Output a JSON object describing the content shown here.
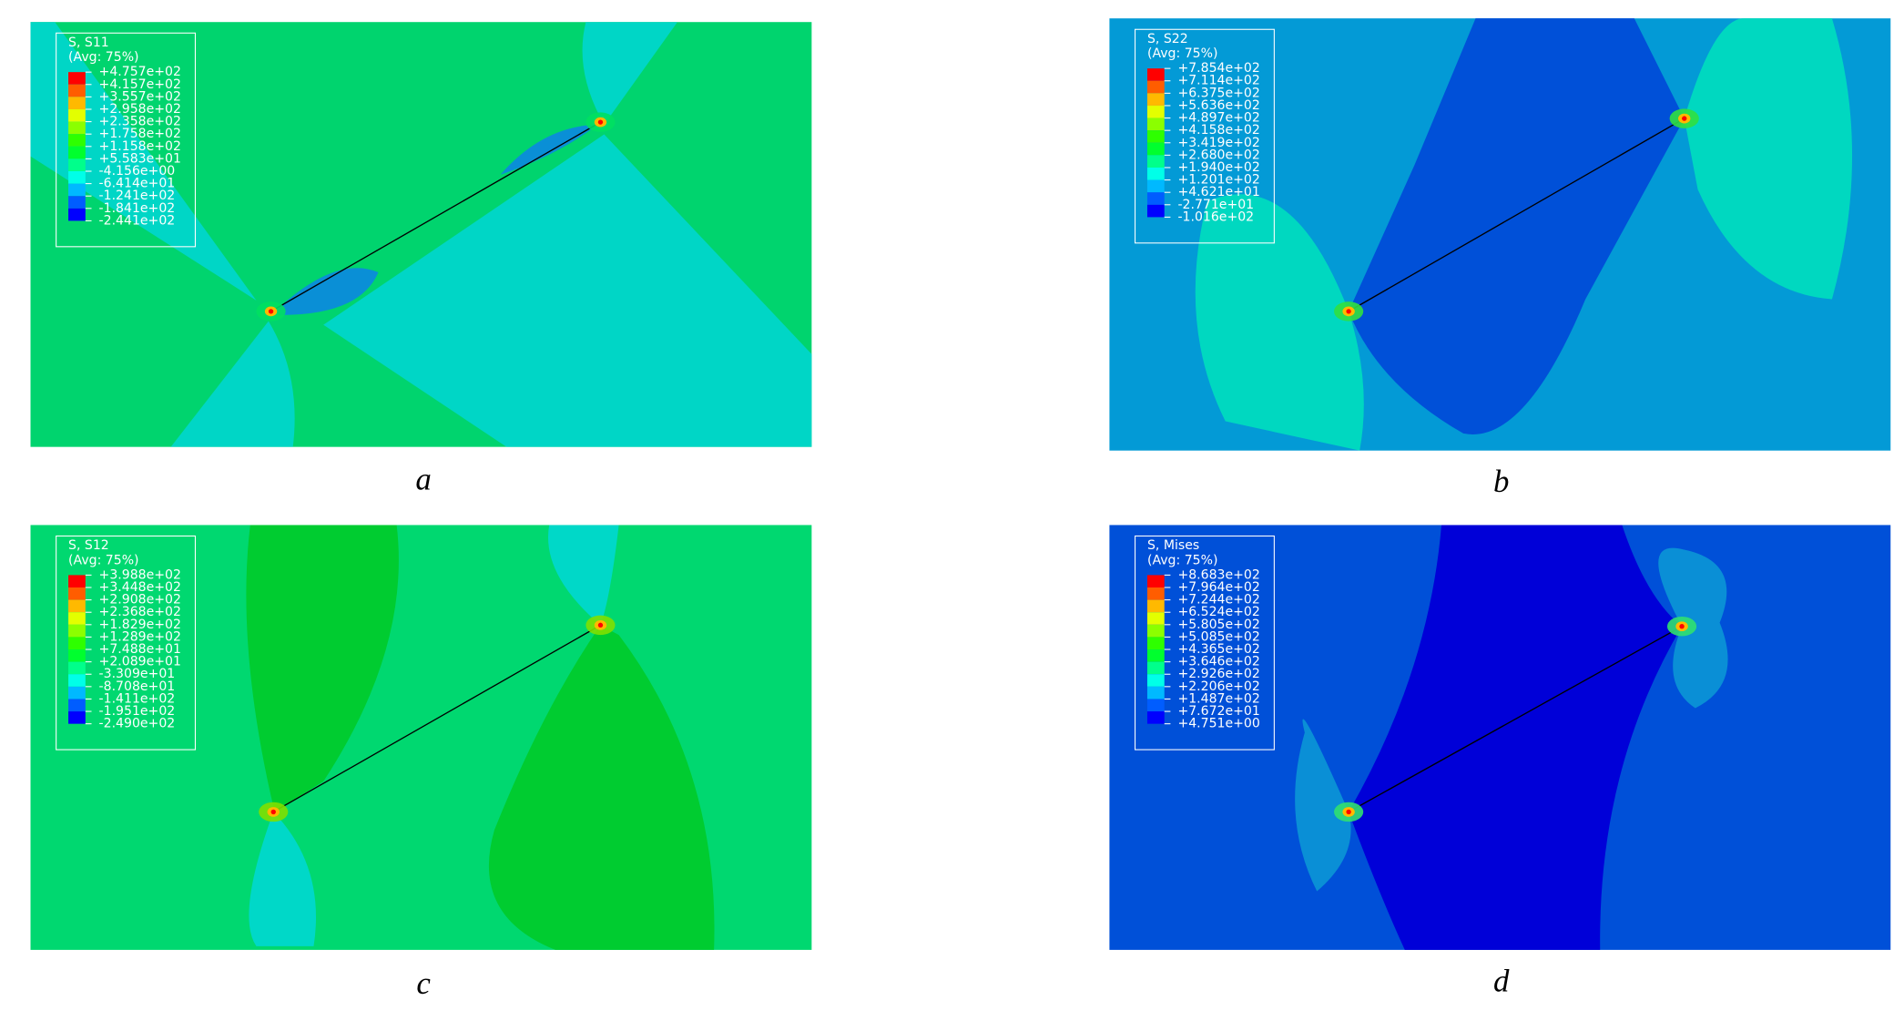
{
  "panels": [
    {
      "label": "a",
      "legend": {
        "title": "S, S11",
        "subtitle": "(Avg: 75%)",
        "levels": [
          "+4.757e+02",
          "+4.157e+02",
          "+3.557e+02",
          "+2.958e+02",
          "+2.358e+02",
          "+1.758e+02",
          "+1.158e+02",
          "+5.583e+01",
          "-4.156e+00",
          "-6.414e+01",
          "-1.241e+02",
          "-1.841e+02",
          "-2.441e+02"
        ]
      }
    },
    {
      "label": "b",
      "legend": {
        "title": "S, S22",
        "subtitle": "(Avg: 75%)",
        "levels": [
          "+7.854e+02",
          "+7.114e+02",
          "+6.375e+02",
          "+5.636e+02",
          "+4.897e+02",
          "+4.158e+02",
          "+3.419e+02",
          "+2.680e+02",
          "+1.940e+02",
          "+1.201e+02",
          "+4.621e+01",
          "-2.771e+01",
          "-1.016e+02"
        ]
      }
    },
    {
      "label": "c",
      "legend": {
        "title": "S, S12",
        "subtitle": "(Avg: 75%)",
        "levels": [
          "+3.988e+02",
          "+3.448e+02",
          "+2.908e+02",
          "+2.368e+02",
          "+1.829e+02",
          "+1.289e+02",
          "+7.488e+01",
          "+2.089e+01",
          "-3.309e+01",
          "-8.708e+01",
          "-1.411e+02",
          "-1.951e+02",
          "-2.490e+02"
        ]
      }
    },
    {
      "label": "d",
      "legend": {
        "title": "S, Mises",
        "subtitle": "(Avg: 75%)",
        "levels": [
          "+8.683e+02",
          "+7.964e+02",
          "+7.244e+02",
          "+6.524e+02",
          "+5.805e+02",
          "+5.085e+02",
          "+4.365e+02",
          "+3.646e+02",
          "+2.926e+02",
          "+2.206e+02",
          "+1.487e+02",
          "+7.672e+01",
          "+4.751e+00"
        ]
      }
    }
  ]
}
